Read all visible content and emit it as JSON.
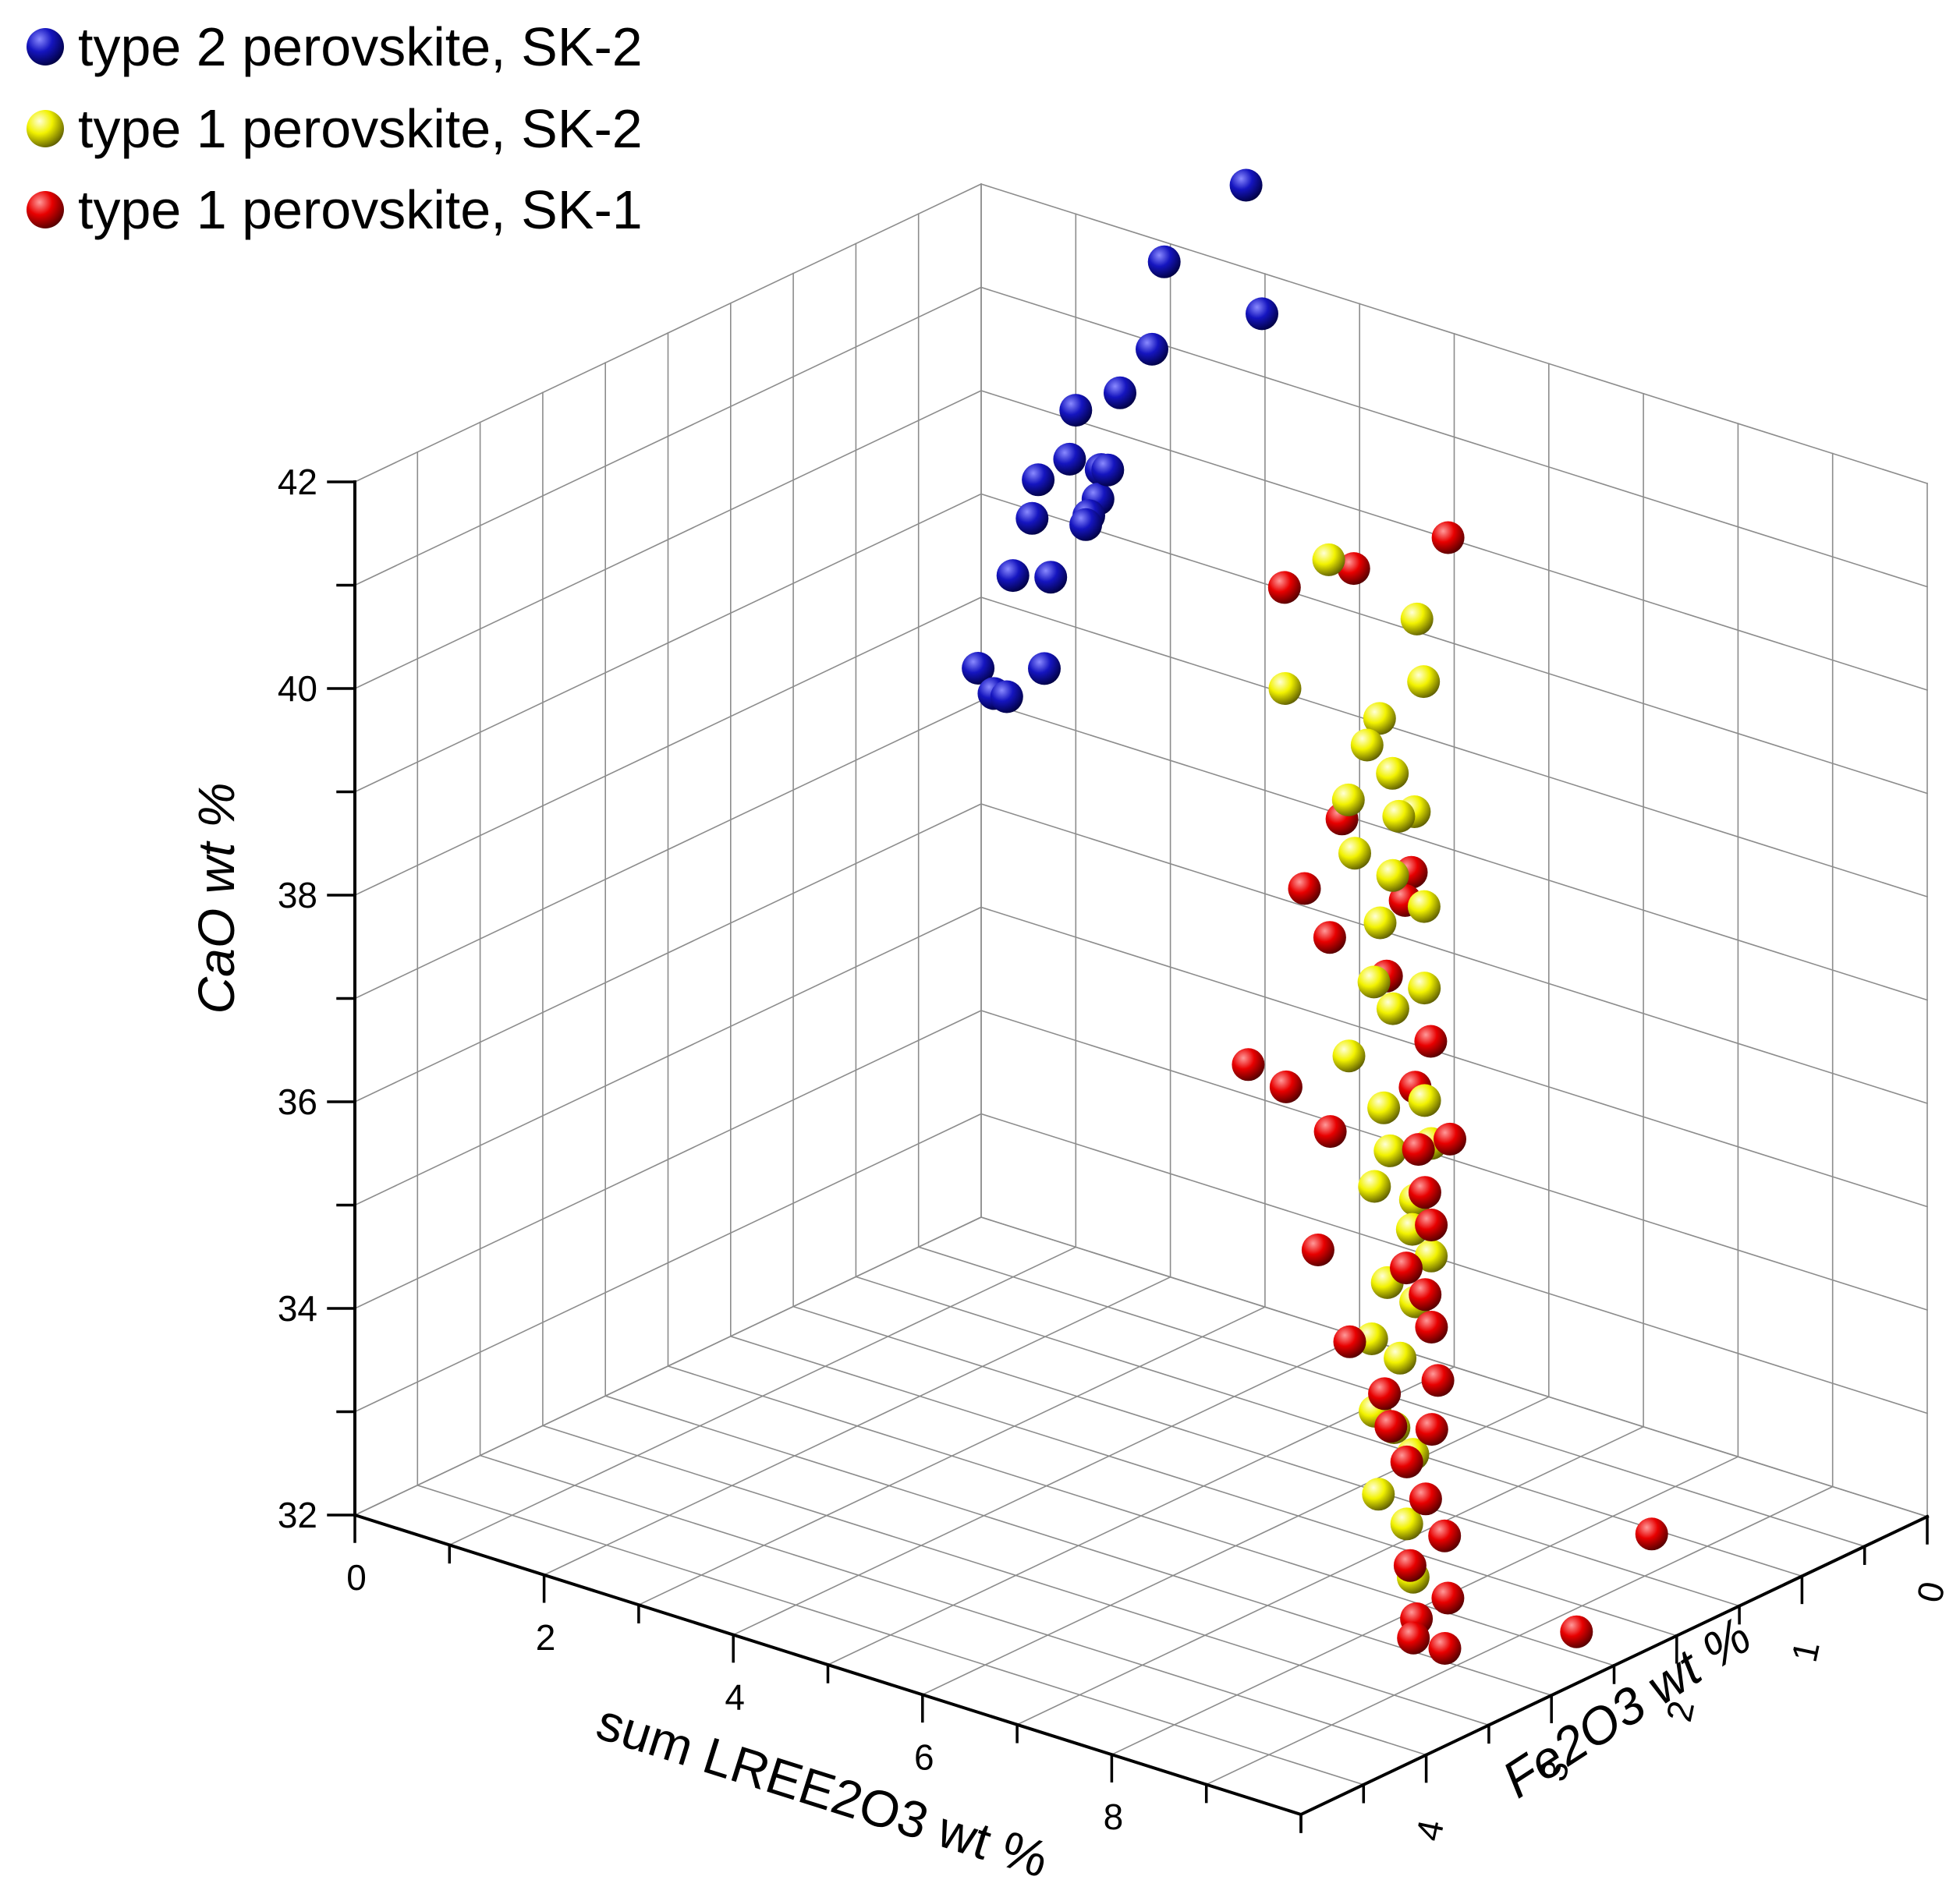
{
  "chart_data": {
    "type": "scatter3d",
    "title": "",
    "axes": {
      "x": {
        "label": "sum LREE2O3 wt %",
        "range": [
          0,
          10
        ],
        "ticks": [
          0,
          2,
          4,
          6,
          8
        ],
        "minor_step": 1
      },
      "y": {
        "label": "Fe2O3 wt %",
        "range": [
          0,
          5
        ],
        "ticks": [
          0,
          1,
          2,
          3,
          4
        ],
        "minor_step": 0.5
      },
      "z": {
        "label": "CaO wt %",
        "range": [
          32,
          42
        ],
        "ticks": [
          32,
          34,
          36,
          38,
          40,
          42
        ],
        "minor_step": 1
      }
    },
    "grid": true,
    "legend_position": "top-left",
    "series": [
      {
        "name": "type 2 perovskite, SK-2",
        "color": "#1010c8",
        "points": [
          {
            "x": 2.8,
            "y": 0.0,
            "z": 42.8
          },
          {
            "x": 2.2,
            "y": 0.2,
            "z": 42.0
          },
          {
            "x": 3.1,
            "y": 0.1,
            "z": 41.7
          },
          {
            "x": 2.6,
            "y": 0.6,
            "z": 41.5
          },
          {
            "x": 1.6,
            "y": 0.1,
            "z": 40.5
          },
          {
            "x": 1.0,
            "y": 0.0,
            "z": 40.1
          },
          {
            "x": 2.0,
            "y": 0.5,
            "z": 40.1
          },
          {
            "x": 1.2,
            "y": 0.2,
            "z": 39.8
          },
          {
            "x": 1.4,
            "y": 0.1,
            "z": 39.7
          },
          {
            "x": 1.5,
            "y": 0.2,
            "z": 39.5
          },
          {
            "x": 1.0,
            "y": 0.3,
            "z": 39.6
          },
          {
            "x": 1.2,
            "y": 0.5,
            "z": 39.4
          },
          {
            "x": 1.8,
            "y": 0.5,
            "z": 39.6
          },
          {
            "x": 1.9,
            "y": 0.6,
            "z": 39.6
          },
          {
            "x": 0.6,
            "y": 0.2,
            "z": 38.5
          },
          {
            "x": 0.8,
            "y": 0.1,
            "z": 37.6
          },
          {
            "x": 0.8,
            "y": 0.4,
            "z": 37.5
          },
          {
            "x": 1.0,
            "y": 0.2,
            "z": 38.6
          },
          {
            "x": 0.1,
            "y": 0.1,
            "z": 37.4
          },
          {
            "x": 0.4,
            "y": 0.2,
            "z": 37.3
          }
        ]
      },
      {
        "name": "type 1 perovskite, SK-2",
        "color": "#f0f000",
        "points": [
          {
            "x": 4.6,
            "y": 0.7,
            "z": 40.1
          },
          {
            "x": 5.4,
            "y": 0.6,
            "z": 39.7
          },
          {
            "x": 4.8,
            "y": 1.2,
            "z": 39.2
          },
          {
            "x": 6.0,
            "y": 1.0,
            "z": 39.5
          },
          {
            "x": 5.8,
            "y": 1.2,
            "z": 39.2
          },
          {
            "x": 5.8,
            "y": 1.3,
            "z": 39.0
          },
          {
            "x": 6.2,
            "y": 1.4,
            "z": 38.9
          },
          {
            "x": 6.3,
            "y": 1.3,
            "z": 38.5
          },
          {
            "x": 6.0,
            "y": 1.6,
            "z": 38.7
          },
          {
            "x": 6.4,
            "y": 1.5,
            "z": 38.6
          },
          {
            "x": 6.2,
            "y": 1.7,
            "z": 38.3
          },
          {
            "x": 6.6,
            "y": 1.7,
            "z": 38.2
          },
          {
            "x": 6.8,
            "y": 1.6,
            "z": 37.9
          },
          {
            "x": 6.6,
            "y": 1.8,
            "z": 37.8
          },
          {
            "x": 6.8,
            "y": 2.0,
            "z": 37.4
          },
          {
            "x": 7.0,
            "y": 2.0,
            "z": 37.2
          },
          {
            "x": 7.2,
            "y": 1.9,
            "z": 37.4
          },
          {
            "x": 6.8,
            "y": 2.2,
            "z": 36.8
          },
          {
            "x": 7.3,
            "y": 2.3,
            "z": 36.5
          },
          {
            "x": 7.6,
            "y": 2.2,
            "z": 36.6
          },
          {
            "x": 7.5,
            "y": 2.4,
            "z": 36.2
          },
          {
            "x": 7.8,
            "y": 2.3,
            "z": 36.3
          },
          {
            "x": 7.9,
            "y": 2.5,
            "z": 35.9
          },
          {
            "x": 7.6,
            "y": 2.6,
            "z": 36.0
          },
          {
            "x": 8.0,
            "y": 2.6,
            "z": 35.7
          },
          {
            "x": 8.2,
            "y": 2.6,
            "z": 35.5
          },
          {
            "x": 8.0,
            "y": 2.8,
            "z": 35.3
          },
          {
            "x": 8.3,
            "y": 2.8,
            "z": 35.2
          },
          {
            "x": 8.1,
            "y": 3.0,
            "z": 34.9
          },
          {
            "x": 8.4,
            "y": 3.0,
            "z": 34.8
          },
          {
            "x": 8.4,
            "y": 3.2,
            "z": 34.4
          },
          {
            "x": 8.6,
            "y": 3.2,
            "z": 34.3
          },
          {
            "x": 8.8,
            "y": 3.2,
            "z": 34.1
          },
          {
            "x": 8.7,
            "y": 3.4,
            "z": 33.8
          },
          {
            "x": 9.0,
            "y": 3.4,
            "z": 33.6
          },
          {
            "x": 9.2,
            "y": 3.5,
            "z": 33.2
          }
        ]
      },
      {
        "name": "type 1 perovskite, SK-1",
        "color": "#e80000",
        "points": [
          {
            "x": 5.2,
            "y": 0.2,
            "z": 40.2
          },
          {
            "x": 4.6,
            "y": 0.5,
            "z": 39.9
          },
          {
            "x": 4.0,
            "y": 0.6,
            "z": 39.6
          },
          {
            "x": 5.8,
            "y": 1.5,
            "z": 38.4
          },
          {
            "x": 5.8,
            "y": 1.8,
            "z": 37.9
          },
          {
            "x": 6.4,
            "y": 1.4,
            "z": 38.0
          },
          {
            "x": 6.6,
            "y": 1.6,
            "z": 37.9
          },
          {
            "x": 6.2,
            "y": 1.9,
            "z": 37.6
          },
          {
            "x": 6.8,
            "y": 1.9,
            "z": 37.4
          },
          {
            "x": 6.0,
            "y": 2.4,
            "z": 36.6
          },
          {
            "x": 6.4,
            "y": 2.4,
            "z": 36.5
          },
          {
            "x": 7.4,
            "y": 2.0,
            "z": 37.0
          },
          {
            "x": 7.5,
            "y": 2.2,
            "z": 36.7
          },
          {
            "x": 7.0,
            "y": 2.5,
            "z": 36.3
          },
          {
            "x": 7.8,
            "y": 2.4,
            "z": 36.3
          },
          {
            "x": 8.0,
            "y": 2.3,
            "z": 36.4
          },
          {
            "x": 8.0,
            "y": 2.5,
            "z": 36.0
          },
          {
            "x": 8.2,
            "y": 2.6,
            "z": 35.8
          },
          {
            "x": 7.4,
            "y": 2.9,
            "z": 35.5
          },
          {
            "x": 8.2,
            "y": 2.8,
            "z": 35.5
          },
          {
            "x": 8.4,
            "y": 2.8,
            "z": 35.3
          },
          {
            "x": 8.6,
            "y": 2.9,
            "z": 35.1
          },
          {
            "x": 8.0,
            "y": 3.1,
            "z": 34.9
          },
          {
            "x": 8.8,
            "y": 3.0,
            "z": 34.7
          },
          {
            "x": 8.5,
            "y": 3.2,
            "z": 34.6
          },
          {
            "x": 8.7,
            "y": 3.3,
            "z": 34.4
          },
          {
            "x": 9.0,
            "y": 3.2,
            "z": 34.4
          },
          {
            "x": 9.0,
            "y": 3.4,
            "z": 34.2
          },
          {
            "x": 9.2,
            "y": 3.4,
            "z": 33.9
          },
          {
            "x": 9.4,
            "y": 3.4,
            "z": 33.6
          },
          {
            "x": 9.3,
            "y": 3.6,
            "z": 33.4
          },
          {
            "x": 9.5,
            "y": 3.7,
            "z": 33.0
          },
          {
            "x": 9.7,
            "y": 3.6,
            "z": 33.2
          },
          {
            "x": 9.6,
            "y": 3.8,
            "z": 32.9
          },
          {
            "x": 9.8,
            "y": 3.7,
            "z": 32.8
          },
          {
            "x": 10.0,
            "y": 2.2,
            "z": 33.1
          },
          {
            "x": 10.0,
            "y": 2.8,
            "z": 32.5
          }
        ]
      }
    ]
  }
}
